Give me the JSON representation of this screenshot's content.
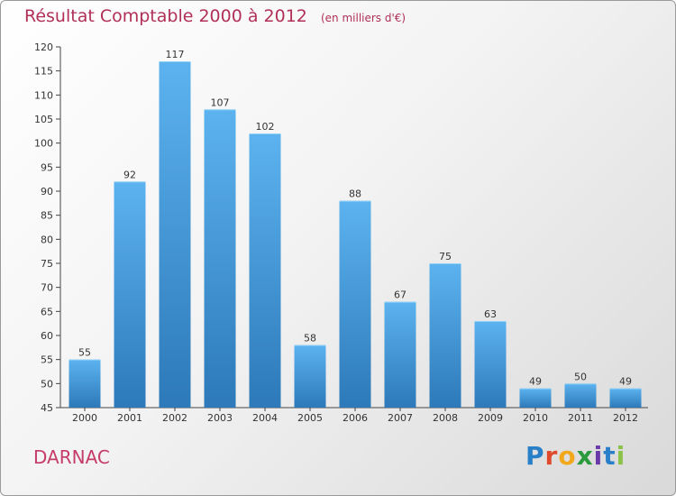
{
  "chart_data": {
    "type": "bar",
    "title": "Résultat Comptable 2000 à 2012",
    "subtitle": "(en milliers d'€)",
    "categories": [
      "2000",
      "2001",
      "2002",
      "2003",
      "2004",
      "2005",
      "2006",
      "2007",
      "2008",
      "2009",
      "2010",
      "2011",
      "2012"
    ],
    "values": [
      55,
      92,
      117,
      107,
      102,
      58,
      88,
      67,
      75,
      63,
      49,
      50,
      49
    ],
    "ylim": [
      45,
      120
    ],
    "yticks": [
      45,
      50,
      55,
      60,
      65,
      70,
      75,
      80,
      85,
      90,
      95,
      100,
      105,
      110,
      115,
      120
    ],
    "xlabel": "",
    "ylabel": "",
    "grid": false
  },
  "location": "DARNAC",
  "logo": {
    "text": "Proxiti",
    "letter_colors": [
      "#2a7fc9",
      "#e0492b",
      "#f2a81d",
      "#2a9a3c",
      "#6a3aa8",
      "#2a7fc9",
      "#8bc34a"
    ]
  },
  "colors": {
    "bar_top": "#5cb3ef",
    "bar_bottom": "#2d79b9",
    "title": "#b03058",
    "axis": "#444444"
  }
}
